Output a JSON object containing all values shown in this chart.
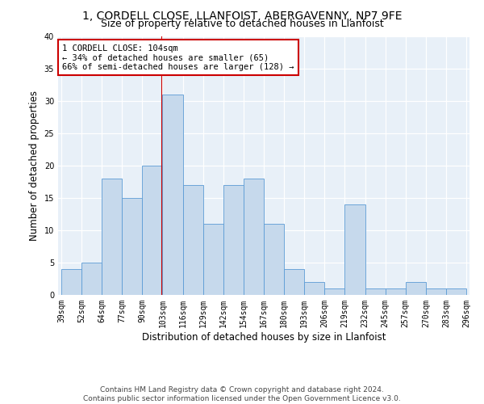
{
  "title_line1": "1, CORDELL CLOSE, LLANFOIST, ABERGAVENNY, NP7 9FE",
  "title_line2": "Size of property relative to detached houses in Llanfoist",
  "xlabel": "Distribution of detached houses by size in Llanfoist",
  "ylabel": "Number of detached properties",
  "bar_values": [
    4,
    5,
    18,
    15,
    20,
    31,
    17,
    11,
    17,
    18,
    11,
    4,
    2,
    1,
    14,
    1,
    1,
    2,
    1,
    1
  ],
  "bar_labels": [
    "39sqm",
    "52sqm",
    "64sqm",
    "77sqm",
    "90sqm",
    "103sqm",
    "116sqm",
    "129sqm",
    "142sqm",
    "154sqm",
    "167sqm",
    "180sqm",
    "193sqm",
    "206sqm",
    "219sqm",
    "232sqm",
    "245sqm",
    "257sqm",
    "270sqm",
    "283sqm",
    "296sqm"
  ],
  "bar_color": "#c6d9ec",
  "bar_edge_color": "#5b9bd5",
  "background_color": "#e8f0f8",
  "annotation_line1": "1 CORDELL CLOSE: 104sqm",
  "annotation_line2": "← 34% of detached houses are smaller (65)",
  "annotation_line3": "66% of semi-detached houses are larger (128) →",
  "annotation_box_color": "#ffffff",
  "annotation_box_edge": "#cc0000",
  "property_line_color": "#cc0000",
  "ylim": [
    0,
    40
  ],
  "yticks": [
    0,
    5,
    10,
    15,
    20,
    25,
    30,
    35,
    40
  ],
  "footnote": "Contains HM Land Registry data © Crown copyright and database right 2024.\nContains public sector information licensed under the Open Government Licence v3.0.",
  "title_fontsize": 10,
  "subtitle_fontsize": 9,
  "axis_label_fontsize": 8.5,
  "tick_fontsize": 7,
  "annotation_fontsize": 7.5,
  "footnote_fontsize": 6.5
}
